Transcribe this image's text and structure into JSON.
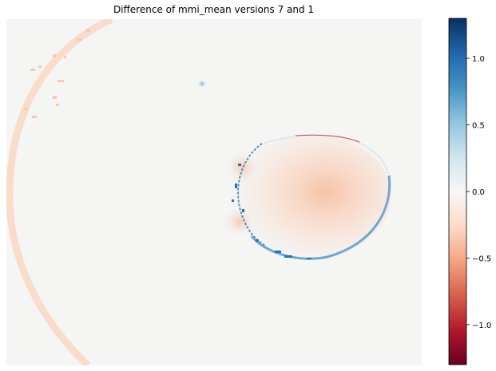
{
  "chart_data": {
    "type": "heatmap",
    "title": "Difference of mmi_mean versions 7 and 1",
    "xlabel": "",
    "ylabel": "",
    "axes_visible": false,
    "colormap": "RdBu",
    "colorbar": {
      "location": "right",
      "vmin": -1.3,
      "vmax": 1.3,
      "ticks": [
        1.0,
        0.5,
        0.0,
        -0.5,
        -1.0
      ],
      "tick_labels": [
        "1.0",
        "0.5",
        "0.0",
        "−0.5",
        "−1.0"
      ]
    },
    "colors": {
      "background_field": "#f5f5f4",
      "negative_low": "#67001f",
      "negative_mid": "#d6604d",
      "neutral": "#f7f7f7",
      "positive_mid": "#4393c3",
      "positive_high": "#053061"
    },
    "features": [
      {
        "name": "large outer arc",
        "approx_value": -0.15
      },
      {
        "name": "central disc",
        "approx_value": -0.3
      },
      {
        "name": "disc rim",
        "approx_value": 0.5
      },
      {
        "name": "small positive spot",
        "approx_value": 0.6
      }
    ]
  }
}
